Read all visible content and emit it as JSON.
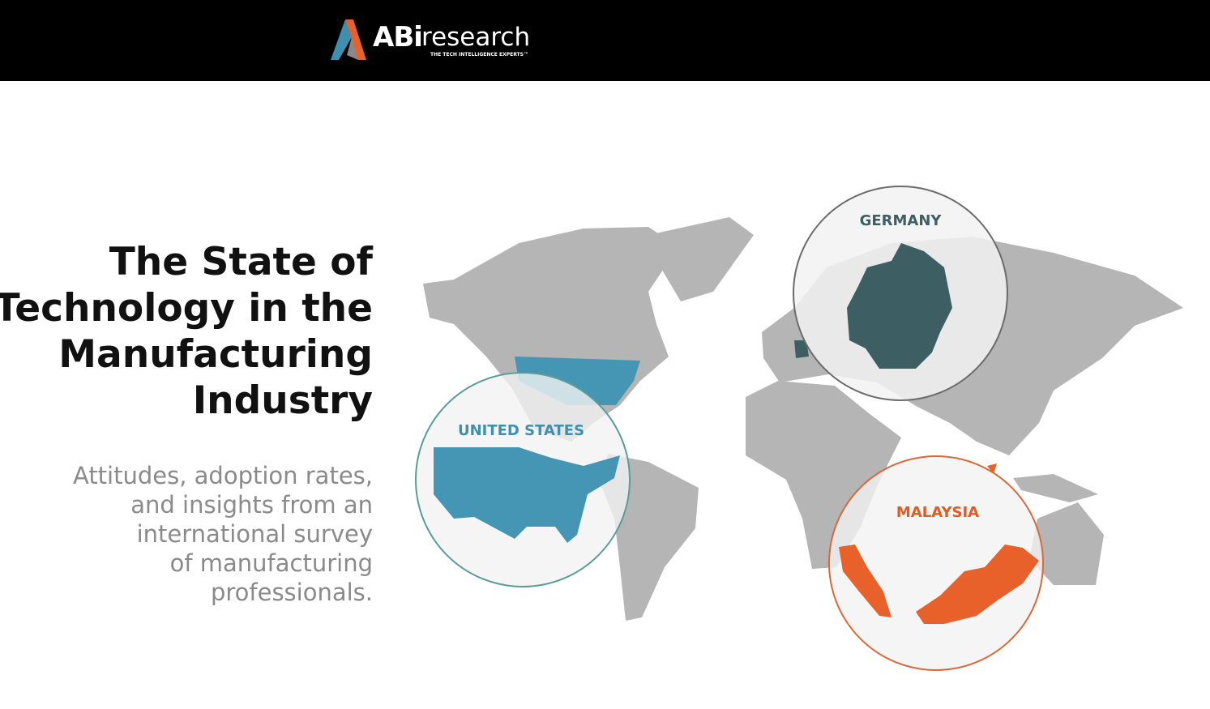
{
  "header": {
    "logo": {
      "brand": "ABi",
      "suffix": "research",
      "tagline": "THE TECH INTELLIGENCE EXPERTS™"
    }
  },
  "hero": {
    "title_lines": [
      "The State of",
      "Technology in the",
      "Manufacturing",
      "Industry"
    ],
    "subtitle_lines": [
      "Attitudes, adoption rates,",
      "and insights from an",
      "international survey",
      "of manufacturing",
      "professionals."
    ]
  },
  "map": {
    "callouts": [
      {
        "label": "GERMANY"
      },
      {
        "label": "UNITED STATES"
      },
      {
        "label": "MALAYSIA"
      }
    ]
  }
}
